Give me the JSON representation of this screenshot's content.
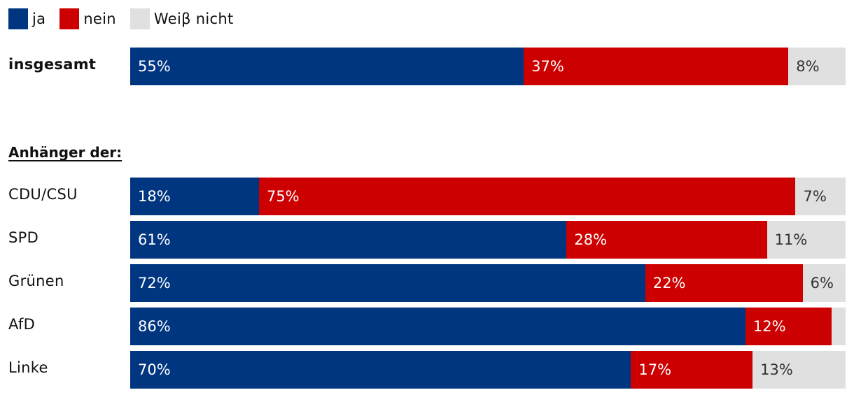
{
  "legend": [
    {
      "key": "ja",
      "label": "ja",
      "color": "#003580"
    },
    {
      "key": "nein",
      "label": "nein",
      "color": "#cc0000"
    },
    {
      "key": "wn",
      "label": "Weiβ nicht",
      "color": "#e0e0e0"
    }
  ],
  "section_heading": "Anhänger der:",
  "chart_data": {
    "type": "bar",
    "orientation": "horizontal",
    "stacked": true,
    "title": "",
    "categories": [
      "insgesamt",
      "CDU/CSU",
      "SPD",
      "Grünen",
      "AfD",
      "Linke"
    ],
    "series": [
      {
        "name": "ja",
        "values": [
          55,
          18,
          61,
          72,
          86,
          70
        ]
      },
      {
        "name": "nein",
        "values": [
          37,
          75,
          28,
          22,
          12,
          17
        ]
      },
      {
        "name": "Weiβ nicht",
        "values": [
          8,
          7,
          11,
          6,
          2,
          13
        ]
      }
    ],
    "labels": [
      [
        "55%",
        "37%",
        "8%"
      ],
      [
        "18%",
        "75%",
        "7%"
      ],
      [
        "61%",
        "28%",
        "11%"
      ],
      [
        "72%",
        "22%",
        "6%"
      ],
      [
        "86%",
        "12%",
        ""
      ],
      [
        "70%",
        "17%",
        "13%"
      ]
    ],
    "unit": "%",
    "xlim": [
      0,
      100
    ]
  }
}
